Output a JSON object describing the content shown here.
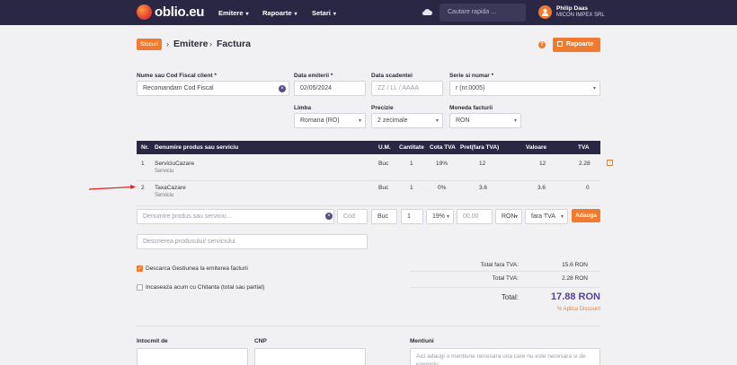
{
  "header": {
    "brand": "oblio.eu",
    "nav": [
      "Emitere",
      "Rapoarte",
      "Setari"
    ],
    "search_placeholder": "Cautare rapida ...",
    "user_name": "Philip Daas",
    "user_company": "MICON IMPEX SRL"
  },
  "breadcrumb": {
    "badge": "Stocuri",
    "items": [
      "Emitere",
      "Factura"
    ]
  },
  "actions": {
    "reports": "Rapoarte"
  },
  "form": {
    "client_label": "Nume sau Cod Fiscal client *",
    "client_value": "Recomandam Cod Fiscal",
    "issue_date_label": "Data emiterii *",
    "issue_date_value": "02/05/2024",
    "due_date_label": "Data scadentei",
    "due_date_placeholder": "ZZ / LL / AAAA",
    "series_label": "Serie si numar *",
    "series_value": "r (nr.0005)",
    "language_label": "Limba",
    "language_value": "Romana (RO)",
    "precision_label": "Precizie",
    "precision_value": "2 zecimale",
    "currency_label": "Moneda facturii",
    "currency_value": "RON"
  },
  "table": {
    "headers": [
      "Nr.",
      "Denumire produs sau serviciu",
      "U.M.",
      "Cantitate",
      "Cota TVA",
      "Pret(fara TVA)",
      "Valoare",
      "TVA"
    ],
    "rows": [
      {
        "nr": "1",
        "name": "ServiciuCazare",
        "sub": "Serviciu",
        "um": "Buc",
        "qty": "1",
        "vat_rate": "19%",
        "price": "12",
        "value": "12",
        "vat": "2.28"
      },
      {
        "nr": "2",
        "name": "TaxaCazare",
        "sub": "Serviciu",
        "um": "Buc",
        "qty": "1",
        "vat_rate": "0%",
        "price": "3.6",
        "value": "3.6",
        "vat": "0"
      }
    ]
  },
  "new_line": {
    "name_placeholder": "Denumire produs sau serviciu...",
    "code_placeholder": "Cod",
    "um_value": "Buc",
    "qty_value": "1",
    "vat_value": "19%",
    "price_placeholder": "00.00",
    "currency_value": "RON",
    "vat_mode_value": "fara TVA",
    "add_label": "Adauga",
    "description_placeholder": "Descrierea produsului/ serviciului"
  },
  "options": {
    "stock_discharge": "Descarca Gestiunea la emiterea facturii",
    "cash_in": "Incaseaza acum cu Chitanta (total sau partial)"
  },
  "totals": {
    "net_label": "Total fara TVA:",
    "net_value": "15.6 RON",
    "vat_label": "Total TVA:",
    "vat_value": "2.28 RON",
    "grand_label": "Total:",
    "grand_value": "17.88 RON",
    "discount_link": "% Aplica Discount"
  },
  "footer_form": {
    "prepared_by_label": "Intocmit de",
    "cnp_label": "CNP",
    "notes_label": "Mentiuni",
    "notes_placeholder": "Aici adaugi o mentiune necesara una care nu este necesara si de exemplu:"
  },
  "colors": {
    "navbar": "#2a2745",
    "accent": "#f07b2f",
    "total": "#5b3f9a"
  }
}
